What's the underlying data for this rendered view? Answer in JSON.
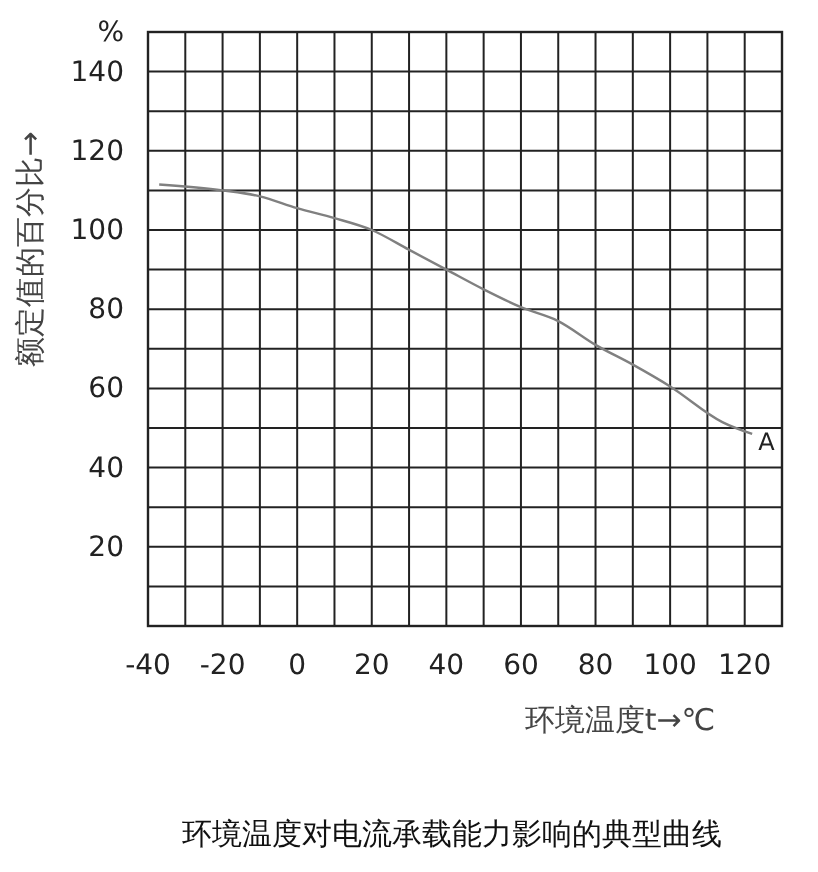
{
  "chart_data": {
    "type": "line",
    "title": "环境温度对电流承载能力影响的典型曲线",
    "xlabel": "环境温度t→℃",
    "ylabel": "额定值的百分比→",
    "x": [
      -37,
      -20,
      -10,
      0,
      10,
      20,
      30,
      40,
      50,
      60,
      70,
      80,
      90,
      100,
      114,
      122
    ],
    "series": [
      {
        "color": "#808080",
        "values": [
          111.5,
          110,
          108.5,
          105.5,
          103,
          100,
          95,
          90,
          85,
          80.5,
          77,
          71,
          66,
          60.5,
          51.5,
          48.5
        ]
      }
    ],
    "xlim": [
      -40,
      130
    ],
    "ylim": [
      0,
      150
    ],
    "xticks": [
      -40,
      {
        "value": -30,
        "label": null
      },
      -20,
      {
        "value": -10,
        "label": null
      },
      0,
      {
        "value": 10,
        "label": null
      },
      20,
      {
        "value": 30,
        "label": null
      },
      40,
      {
        "value": 50,
        "label": null
      },
      60,
      {
        "value": 70,
        "label": null
      },
      80,
      {
        "value": 90,
        "label": null
      },
      100,
      {
        "value": 110,
        "label": null
      },
      120,
      {
        "value": 130,
        "label": null
      }
    ],
    "yticks": [
      {
        "value": 10,
        "label": null
      },
      20,
      {
        "value": 30,
        "label": null
      },
      40,
      {
        "value": 50,
        "label": null
      },
      60,
      {
        "value": 70,
        "label": null
      },
      80,
      {
        "value": 90,
        "label": null
      },
      100,
      {
        "value": 110,
        "label": null
      },
      120,
      {
        "value": 130,
        "label": null
      },
      140,
      {
        "value": 150,
        "label": "%"
      }
    ],
    "grid": true,
    "marker": "none",
    "line_style": "solid",
    "annotations": [
      {
        "text": "A",
        "x": 122,
        "y": 48.5
      }
    ]
  }
}
